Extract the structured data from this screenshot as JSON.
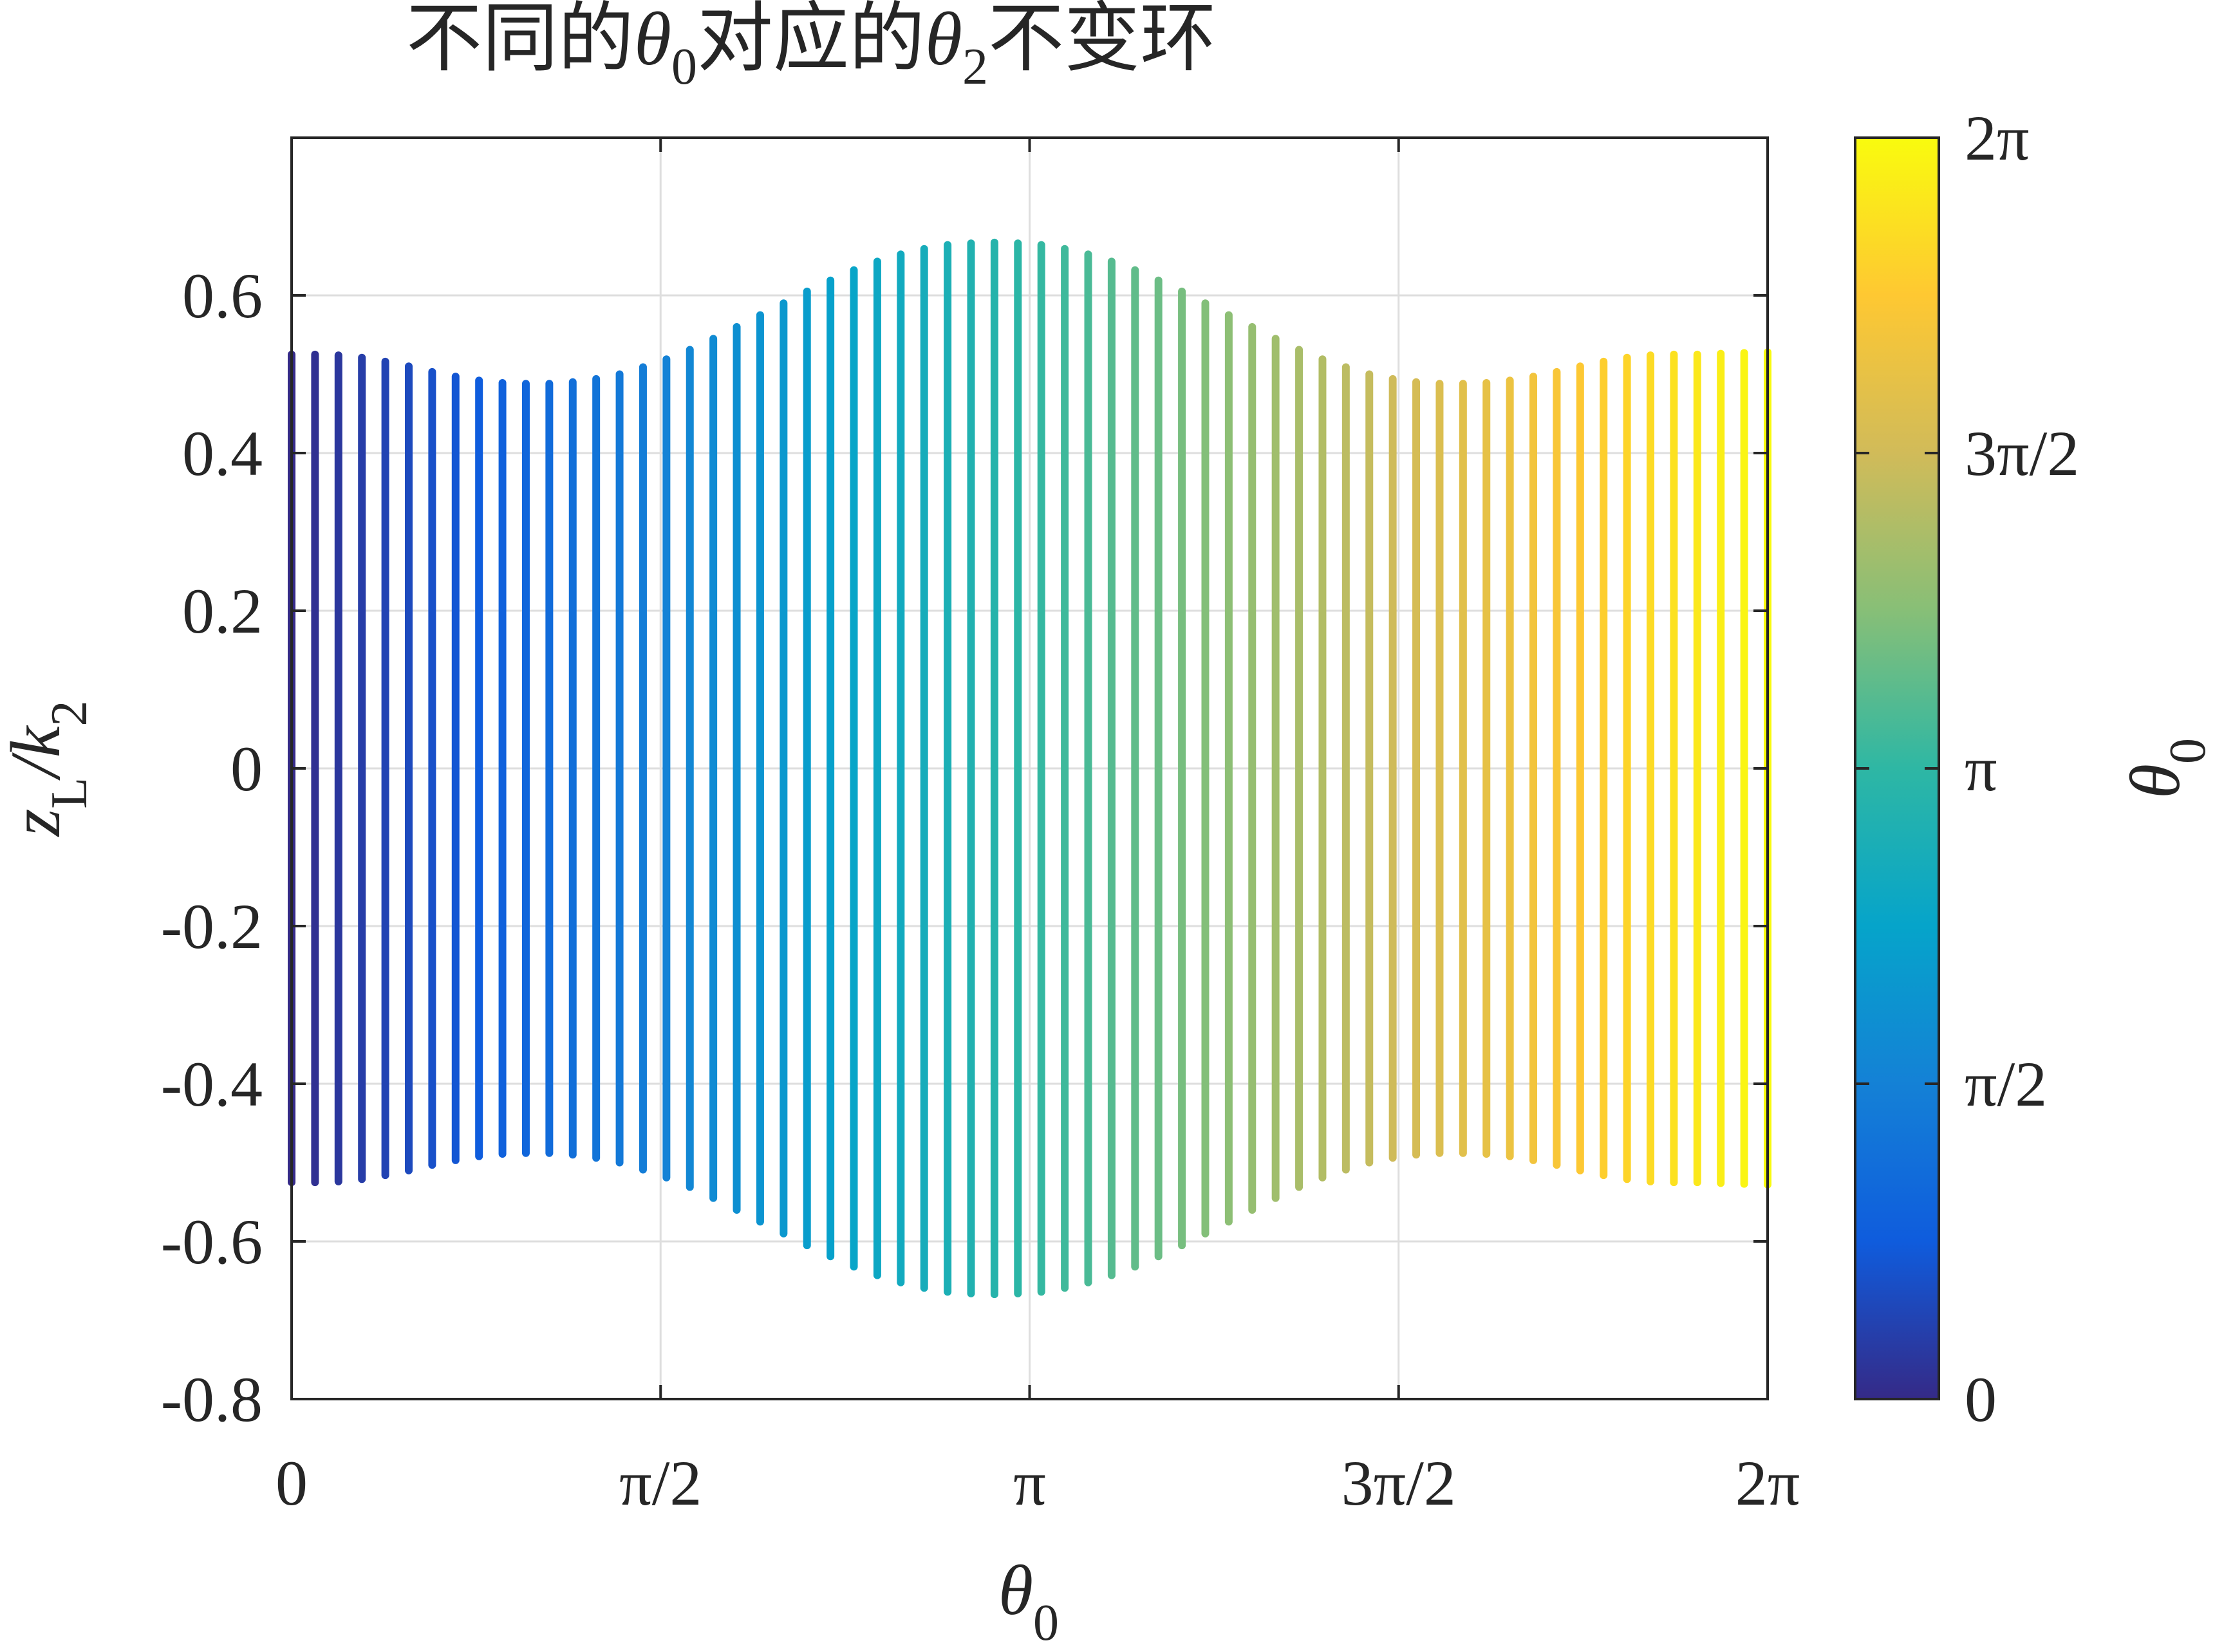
{
  "chart_data": {
    "type": "line",
    "title_parts": [
      "不同的",
      "θ",
      "0",
      "对应的",
      "θ",
      "2",
      "不变环"
    ],
    "xlabel": {
      "base": "θ",
      "sub": "0"
    },
    "ylabel": {
      "z": "z",
      "zsub": "L",
      "slash": "/k",
      "ksub": "2"
    },
    "xlim": [
      0,
      6.283185
    ],
    "ylim": [
      -0.8,
      0.8
    ],
    "x_ticks": [
      {
        "value": 0,
        "label": "0"
      },
      {
        "value": 1.570796,
        "label": "π/2"
      },
      {
        "value": 3.141593,
        "label": "π"
      },
      {
        "value": 4.712389,
        "label": "3π/2"
      },
      {
        "value": 6.283185,
        "label": "2π"
      }
    ],
    "y_ticks": [
      {
        "value": -0.8,
        "label": "-0.8"
      },
      {
        "value": -0.6,
        "label": "-0.6"
      },
      {
        "value": -0.4,
        "label": "-0.4"
      },
      {
        "value": -0.2,
        "label": "-0.2"
      },
      {
        "value": 0,
        "label": "0"
      },
      {
        "value": 0.2,
        "label": "0.2"
      },
      {
        "value": 0.4,
        "label": "0.4"
      },
      {
        "value": 0.6,
        "label": "0.6"
      }
    ],
    "grid": true,
    "segments": {
      "count": 64,
      "x_start": 0,
      "x_end": 6.283185,
      "color_by": "x",
      "half_height": [
        0.525,
        0.525,
        0.524,
        0.521,
        0.516,
        0.51,
        0.503,
        0.497,
        0.492,
        0.489,
        0.488,
        0.488,
        0.49,
        0.494,
        0.5,
        0.509,
        0.519,
        0.531,
        0.545,
        0.56,
        0.575,
        0.59,
        0.605,
        0.619,
        0.632,
        0.643,
        0.652,
        0.659,
        0.664,
        0.666,
        0.667,
        0.666,
        0.664,
        0.659,
        0.652,
        0.643,
        0.632,
        0.619,
        0.605,
        0.59,
        0.575,
        0.56,
        0.545,
        0.531,
        0.519,
        0.509,
        0.5,
        0.494,
        0.49,
        0.488,
        0.488,
        0.489,
        0.492,
        0.497,
        0.503,
        0.51,
        0.516,
        0.521,
        0.524,
        0.525,
        0.525,
        0.526,
        0.527,
        0.528
      ]
    },
    "colorbar": {
      "label": {
        "base": "θ",
        "sub": "0"
      },
      "range": [
        0,
        6.283185
      ],
      "ticks": [
        {
          "value": 0,
          "label": "0"
        },
        {
          "value": 1.570796,
          "label": "π/2"
        },
        {
          "value": 3.141593,
          "label": "π"
        },
        {
          "value": 4.712389,
          "label": "3π/2"
        },
        {
          "value": 6.283185,
          "label": "2π"
        }
      ],
      "colormap": "parula",
      "colormap_stops": [
        "#352a87",
        "#0f5cdd",
        "#1481d6",
        "#06a4ca",
        "#2eb7a4",
        "#87bf77",
        "#d1bb59",
        "#fec832",
        "#f9fb0e"
      ]
    }
  }
}
